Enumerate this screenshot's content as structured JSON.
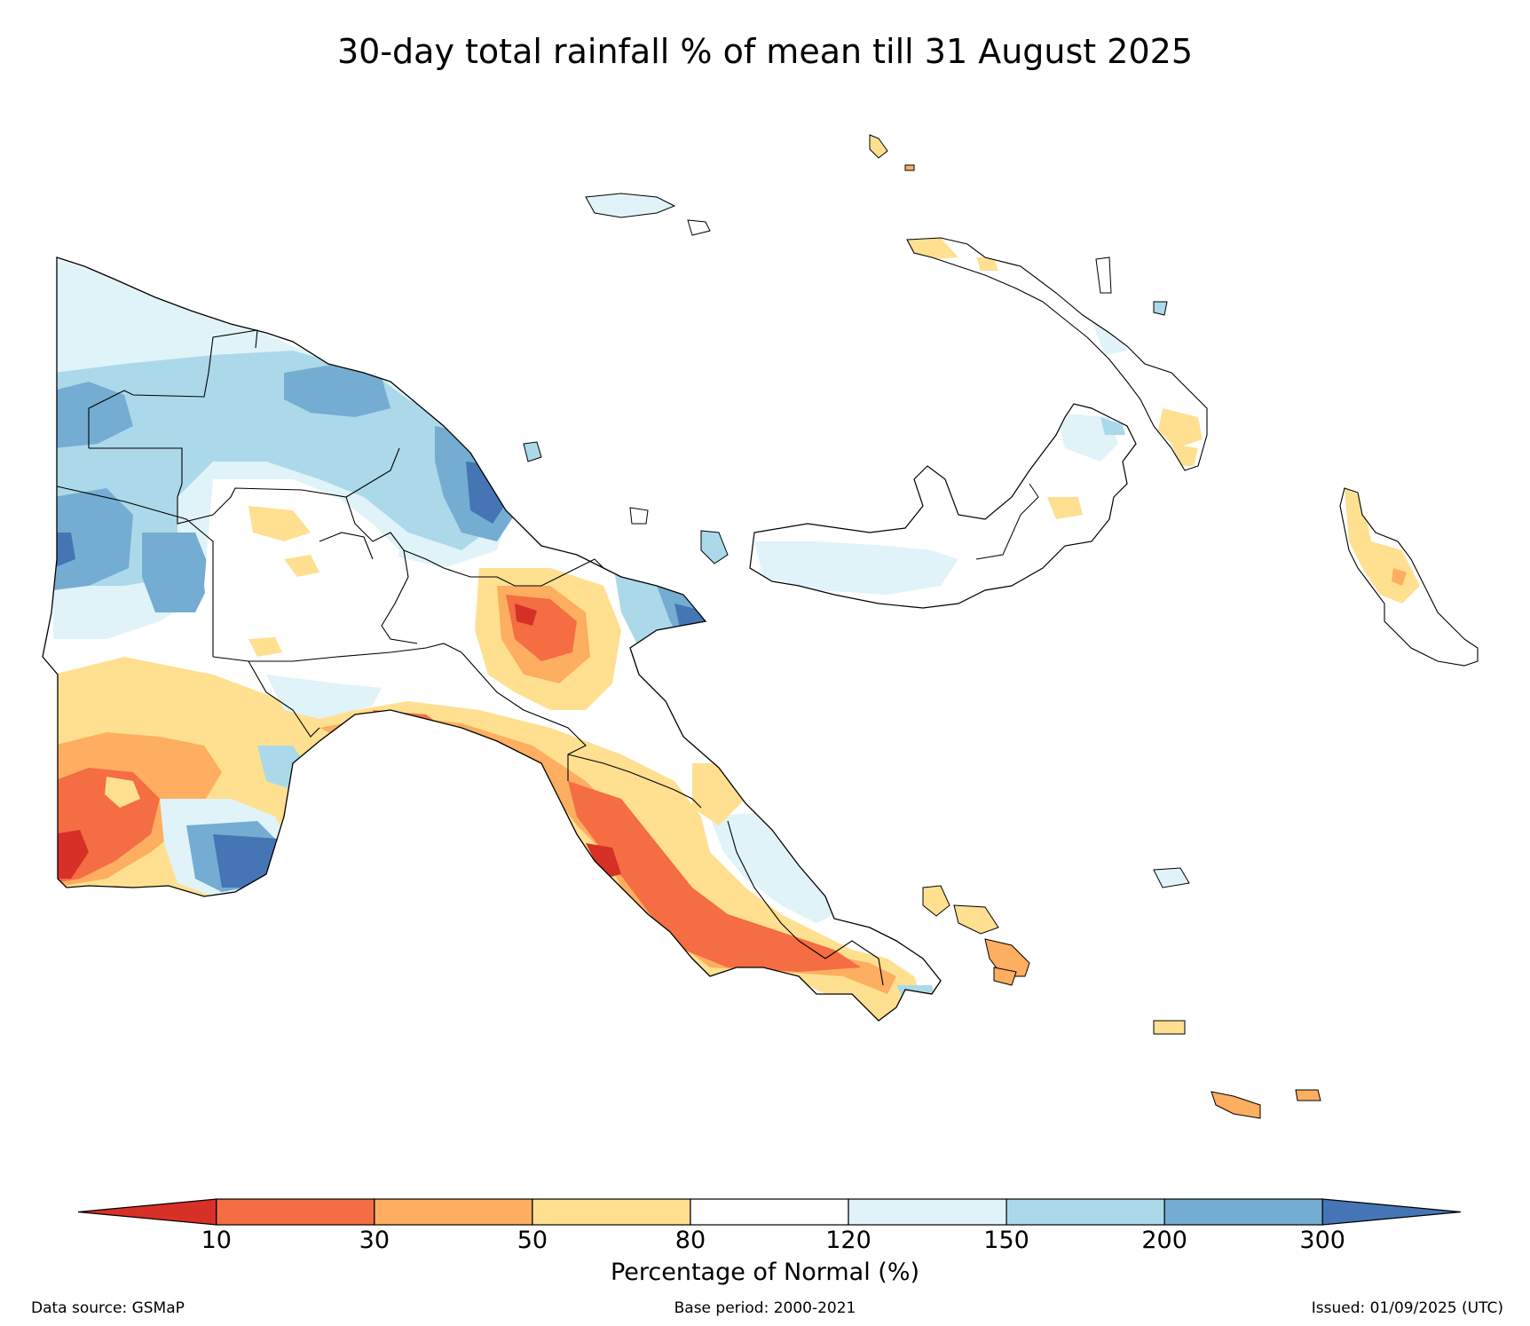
{
  "title": "30-day total rainfall % of mean till 31 August 2025",
  "colorbar": {
    "title": "Percentage of Normal (%)",
    "tick_labels": [
      "10",
      "30",
      "50",
      "80",
      "120",
      "150",
      "200",
      "300"
    ],
    "colors": [
      "#d73027",
      "#f46d43",
      "#fdae61",
      "#fee090",
      "#ffffff",
      "#e0f3f8",
      "#abd9e9",
      "#74add1",
      "#4575b4"
    ]
  },
  "footer": {
    "data_source": "Data source: GSMaP",
    "base_period": "Base period: 2000-2021",
    "issued": "Issued: 01/09/2025 (UTC)"
  }
}
